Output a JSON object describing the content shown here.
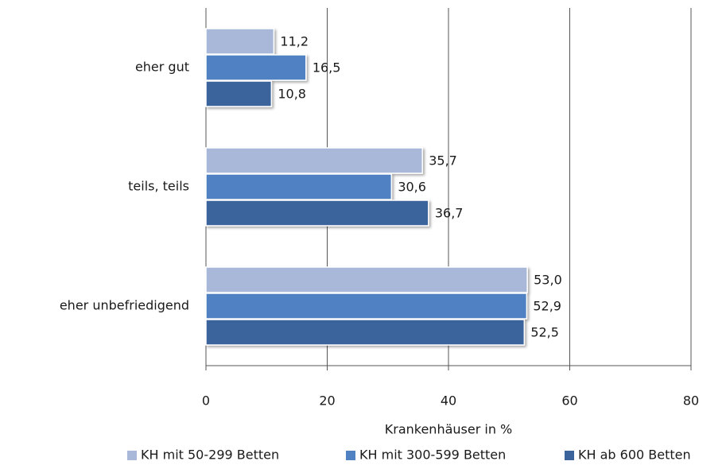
{
  "chart_data": {
    "type": "bar",
    "orientation": "horizontal",
    "categories": [
      "eher gut",
      "teils, teils",
      "eher unbefriedigend"
    ],
    "series": [
      {
        "name": "KH mit 50-299 Betten",
        "color": "#a9b8d9",
        "values": [
          11.2,
          35.7,
          53.0
        ],
        "value_labels": [
          "11,2",
          "35,7",
          "53,0"
        ]
      },
      {
        "name": "KH mit 300-599 Betten",
        "color": "#4f81c3",
        "values": [
          16.5,
          30.6,
          52.9
        ],
        "value_labels": [
          "16,5",
          "30,6",
          "52,9"
        ]
      },
      {
        "name": "KH ab 600 Betten",
        "color": "#3b649c",
        "values": [
          10.8,
          36.7,
          52.5
        ],
        "value_labels": [
          "10,8",
          "36,7",
          "52,5"
        ]
      }
    ],
    "xlabel": "Krankenhäuser in %",
    "xlim": [
      0,
      80
    ],
    "xticks": [
      0,
      20,
      40,
      60,
      80
    ],
    "grid": true,
    "legend": "bottom"
  }
}
